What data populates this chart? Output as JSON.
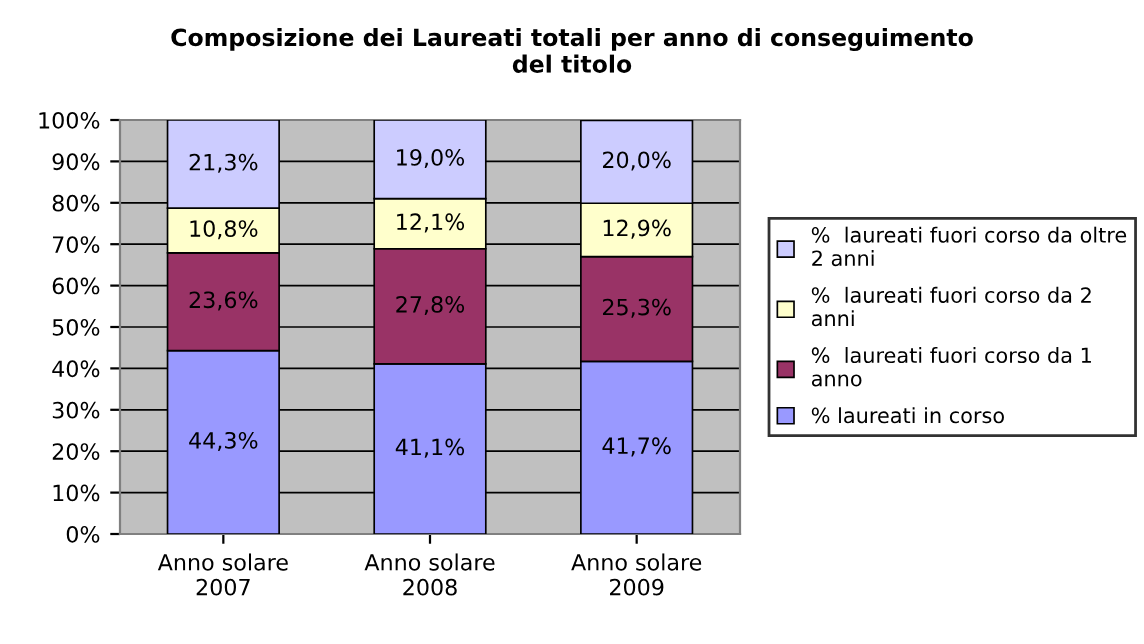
{
  "chart_data": {
    "type": "bar",
    "stacked": true,
    "title": "Composizione dei Laureati totali per anno di conseguimento\ndel titolo",
    "categories": [
      "Anno solare\n2007",
      "Anno solare\n2008",
      "Anno solare\n2009"
    ],
    "series": [
      {
        "name": "% laureati in corso",
        "color": "#9999ff",
        "values": [
          44.3,
          41.1,
          41.7
        ],
        "value_labels": [
          "44,3%",
          "41,1%",
          "41,7%"
        ]
      },
      {
        "name": "%  laureati fuori corso da 1\nanno",
        "color": "#993366",
        "values": [
          23.6,
          27.8,
          25.3
        ],
        "value_labels": [
          "23,6%",
          "27,8%",
          "25,3%"
        ]
      },
      {
        "name": "%  laureati fuori corso da 2\nanni",
        "color": "#ffffcc",
        "values": [
          10.8,
          12.1,
          12.9
        ],
        "value_labels": [
          "10,8%",
          "12,1%",
          "12,9%"
        ]
      },
      {
        "name": "%  laureati fuori corso da oltre\n2 anni",
        "color": "#ccccff",
        "values": [
          21.3,
          19.0,
          20.0
        ],
        "value_labels": [
          "21,3%",
          "19,0%",
          "20,0%"
        ]
      }
    ],
    "ylim": [
      0,
      100
    ],
    "yticks": [
      {
        "value": 0,
        "label": "0%"
      },
      {
        "value": 10,
        "label": "10%"
      },
      {
        "value": 20,
        "label": "20%"
      },
      {
        "value": 30,
        "label": "30%"
      },
      {
        "value": 40,
        "label": "40%"
      },
      {
        "value": 50,
        "label": "50%"
      },
      {
        "value": 60,
        "label": "60%"
      },
      {
        "value": 70,
        "label": "70%"
      },
      {
        "value": 80,
        "label": "80%"
      },
      {
        "value": 90,
        "label": "90%"
      },
      {
        "value": 100,
        "label": "100%"
      }
    ],
    "grid": "y",
    "legend": "right"
  }
}
